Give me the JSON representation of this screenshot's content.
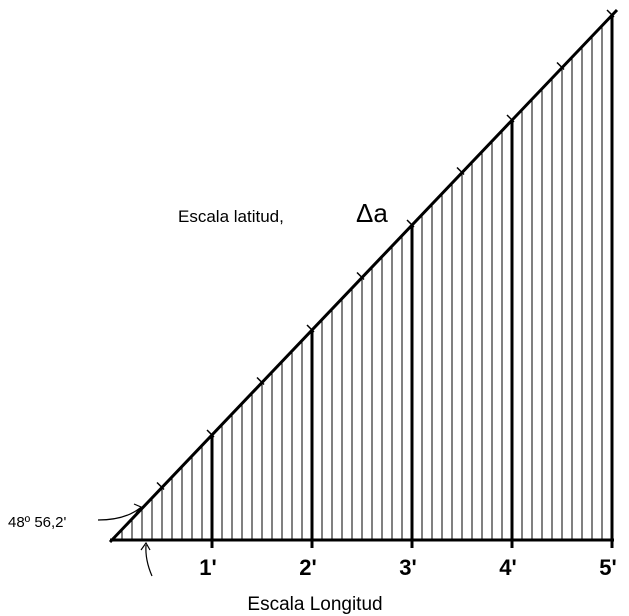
{
  "labels": {
    "latitude_scale": "Escala latitud,",
    "delta": "Δa",
    "angle": "48º 56,2'",
    "longitude_scale": "Escala Longitud"
  },
  "ticks": [
    "1'",
    "2'",
    "3'",
    "4'",
    "5'"
  ]
}
